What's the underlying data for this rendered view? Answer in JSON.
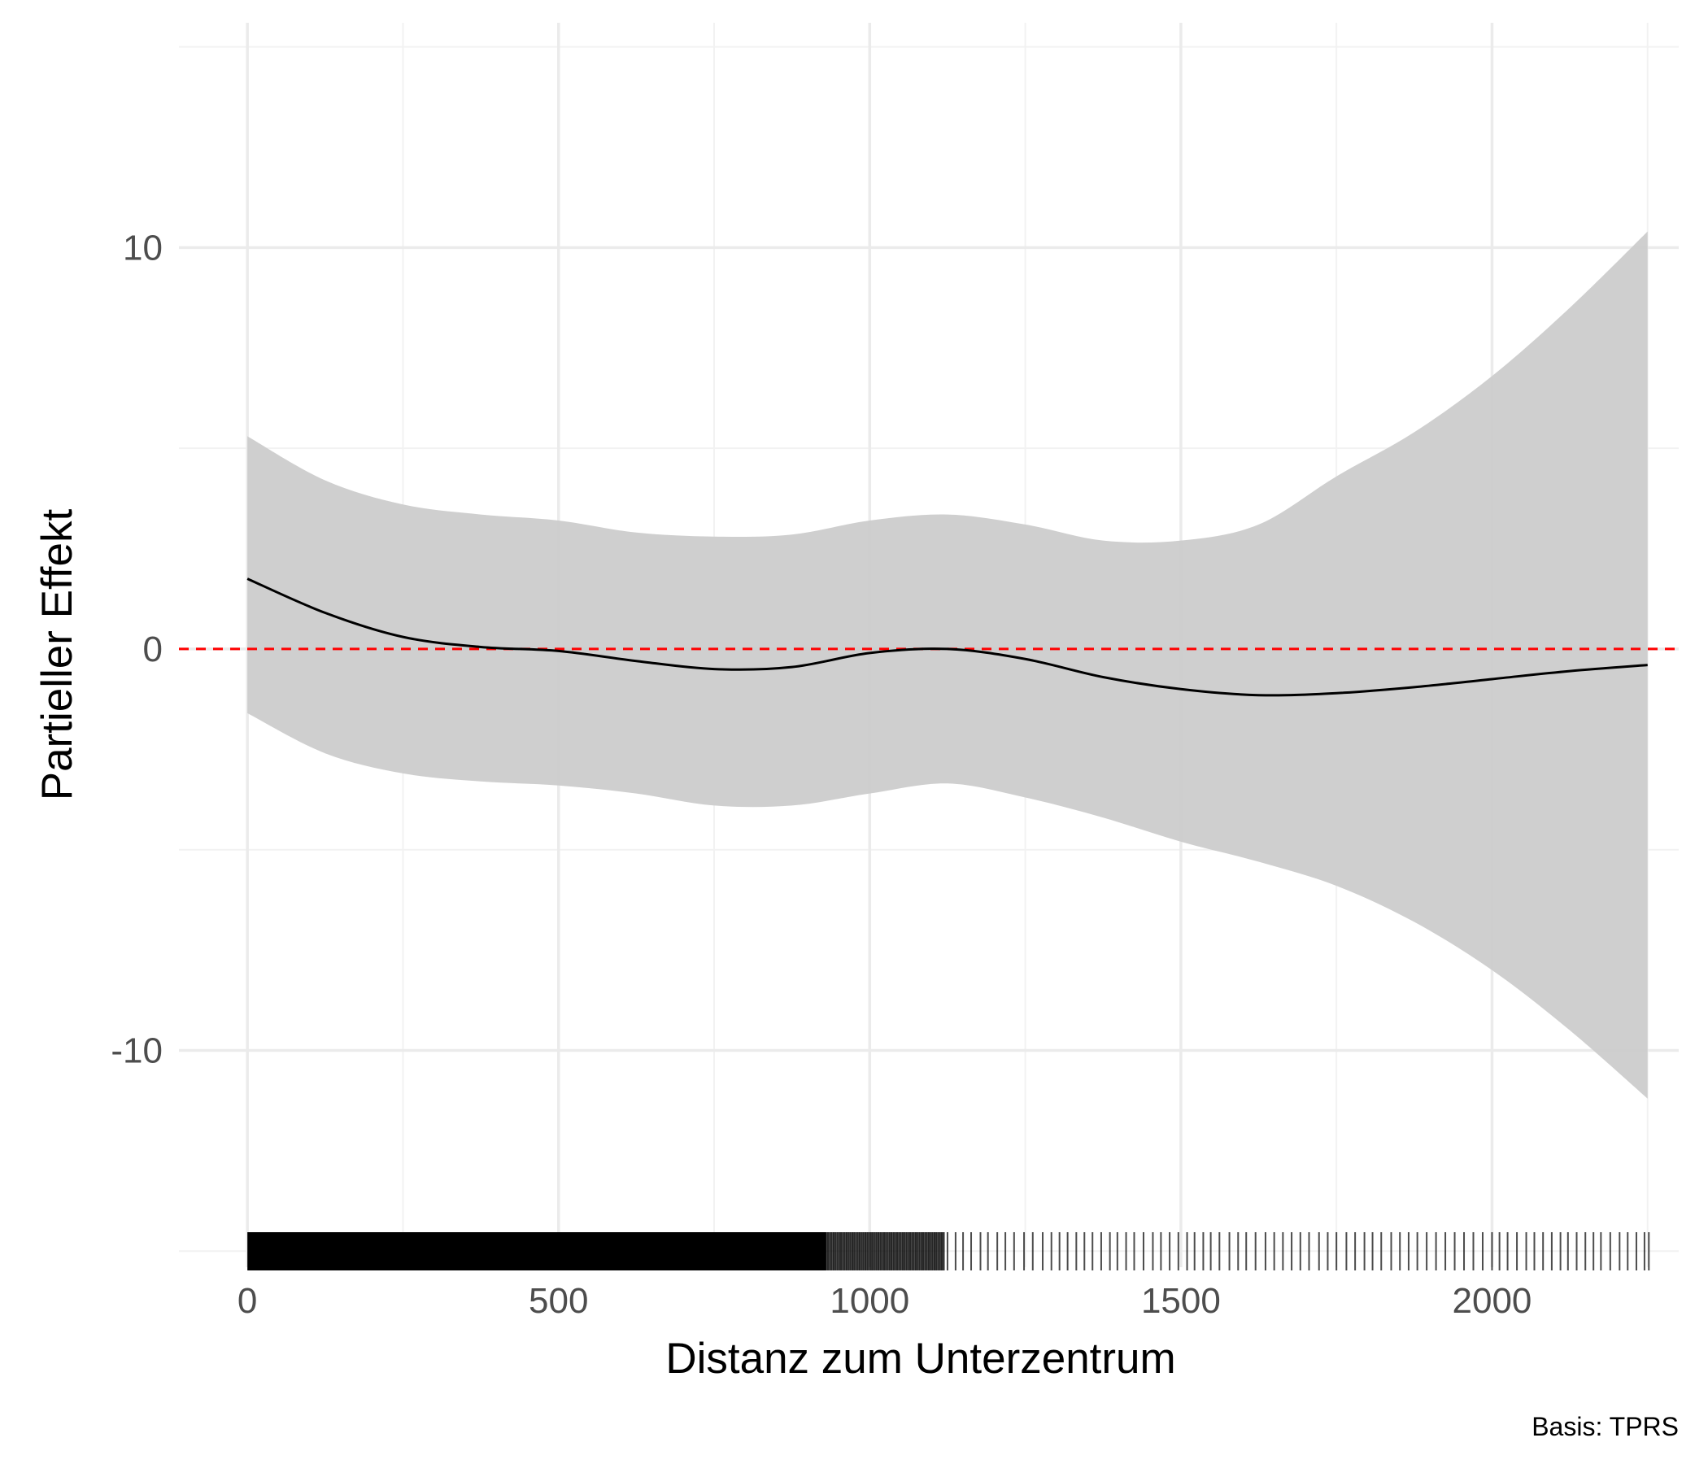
{
  "colors": {
    "background": "#ffffff",
    "grid_major": "#ebebeb",
    "grid_minor": "#f2f2f2",
    "ribbon": "#cccccc",
    "line": "#000000",
    "reference_line": "#ff0000",
    "rug": "#000000"
  },
  "chart_data": {
    "type": "line",
    "xlabel": "Distanz zum Unterzentrum",
    "ylabel": "Partieller Effekt",
    "caption": "Basis: TPRS",
    "xlim": [
      -110,
      2300
    ],
    "ylim": [
      -15.4,
      15.6
    ],
    "x_ticks": [
      0,
      500,
      1000,
      1500,
      2000
    ],
    "x_tick_labels": [
      "0",
      "500",
      "1000",
      "1500",
      "2000"
    ],
    "x_minor_ticks": [
      250,
      750,
      1250,
      1750,
      2250
    ],
    "y_ticks": [
      -10,
      0,
      10
    ],
    "y_tick_labels": [
      "-10",
      "0",
      "10"
    ],
    "y_minor_ticks": [
      -15,
      -5,
      5,
      15
    ],
    "grid": true,
    "reference_line": {
      "y": 0,
      "style": "dashed"
    },
    "series": [
      {
        "x": [
          0,
          125,
          250,
          375,
          500,
          625,
          750,
          875,
          1000,
          1125,
          1250,
          1375,
          1500,
          1625,
          1750,
          1875,
          2000,
          2125,
          2250
        ],
        "y": [
          1.75,
          0.9,
          0.3,
          0.05,
          -0.05,
          -0.3,
          -0.5,
          -0.45,
          -0.1,
          0.0,
          -0.25,
          -0.7,
          -1.0,
          -1.15,
          -1.1,
          -0.95,
          -0.75,
          -0.55,
          -0.4
        ],
        "lower": [
          -1.6,
          -2.6,
          -3.1,
          -3.3,
          -3.4,
          -3.6,
          -3.9,
          -3.9,
          -3.6,
          -3.35,
          -3.7,
          -4.2,
          -4.8,
          -5.3,
          -5.9,
          -6.8,
          -8.0,
          -9.5,
          -11.2
        ],
        "upper": [
          5.3,
          4.2,
          3.6,
          3.35,
          3.2,
          2.9,
          2.8,
          2.85,
          3.2,
          3.35,
          3.1,
          2.7,
          2.7,
          3.1,
          4.3,
          5.4,
          6.8,
          8.5,
          10.4
        ]
      }
    ],
    "rug": {
      "dense_ranges": [
        [
          0,
          930
        ],
        [
          930,
          1120
        ]
      ],
      "sparse_x": [
        1125,
        1138,
        1150,
        1163,
        1178,
        1190,
        1205,
        1218,
        1232,
        1248,
        1262,
        1278,
        1292,
        1305,
        1318,
        1332,
        1345,
        1358,
        1372,
        1386,
        1398,
        1412,
        1425,
        1440,
        1455,
        1468,
        1482,
        1496,
        1510,
        1522,
        1536,
        1548,
        1562,
        1578,
        1592,
        1605,
        1620,
        1636,
        1650,
        1664,
        1678,
        1692,
        1706,
        1722,
        1736,
        1750,
        1766,
        1780,
        1795,
        1808,
        1822,
        1838,
        1852,
        1866,
        1880,
        1895,
        1910,
        1925,
        1940,
        1955,
        1970,
        1985,
        2000,
        2012,
        2025,
        2040,
        2055,
        2068,
        2082,
        2096,
        2110,
        2122,
        2136,
        2150,
        2163,
        2175,
        2190,
        2205,
        2218,
        2232,
        2245,
        2252
      ]
    }
  }
}
